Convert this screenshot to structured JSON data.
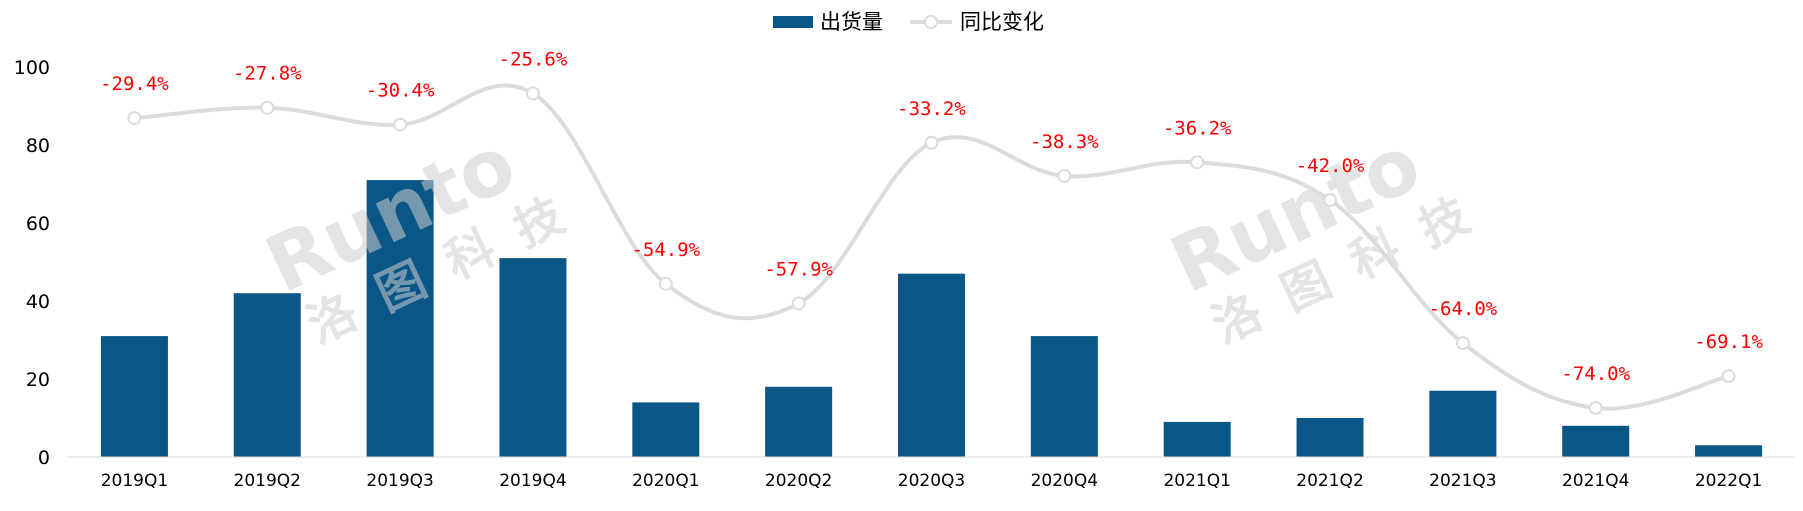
{
  "chart_data": {
    "type": "bar",
    "categories": [
      "2019Q1",
      "2019Q2",
      "2019Q3",
      "2019Q4",
      "2020Q1",
      "2020Q2",
      "2020Q3",
      "2020Q4",
      "2021Q1",
      "2021Q2",
      "2021Q3",
      "2021Q4",
      "2022Q1"
    ],
    "series": [
      {
        "name": "出货量",
        "type": "bar",
        "values": [
          31,
          42,
          71,
          51,
          14,
          18,
          47,
          31,
          9,
          10,
          17,
          8,
          3
        ]
      },
      {
        "name": "同比变化",
        "type": "line",
        "values": [
          -29.4,
          -27.8,
          -30.4,
          -25.6,
          -54.9,
          -57.9,
          -33.2,
          -38.3,
          -36.2,
          -42.0,
          -64.0,
          -74.0,
          -69.1
        ],
        "labels": [
          "-29.4%",
          "-27.8%",
          "-30.4%",
          "-25.6%",
          "-54.9%",
          "-57.9%",
          "-33.2%",
          "-38.3%",
          "-36.2%",
          "-42.0%",
          "-64.0%",
          "-74.0%",
          "-69.1%"
        ]
      }
    ],
    "ylim": [
      0,
      100
    ],
    "yticks": [
      0,
      20,
      40,
      60,
      80,
      100
    ],
    "grid": false,
    "legend": "top-center",
    "colors": {
      "bar": "#0a5687",
      "line": "#dcdcdc",
      "label": "#ff0000"
    }
  },
  "watermark": {
    "latin": "Runto",
    "chinese": "洛图科技"
  }
}
